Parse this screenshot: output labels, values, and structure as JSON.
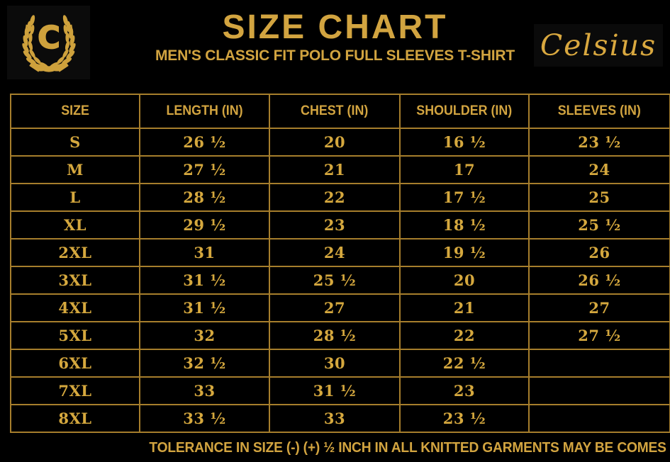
{
  "brand": {
    "logo_letter": "C",
    "name": "Celsius"
  },
  "header": {
    "title": "SIZE CHART",
    "subtitle": "MEN'S CLASSIC FIT POLO FULL SLEEVES T-SHIRT"
  },
  "chart_data": {
    "type": "table",
    "title": "SIZE CHART",
    "subtitle": "MEN'S CLASSIC FIT POLO FULL SLEEVES T-SHIRT",
    "columns": [
      "SIZE",
      "LENGTH (IN)",
      "CHEST (IN)",
      "SHOULDER (IN)",
      "SLEEVES (IN)"
    ],
    "rows": [
      [
        "S",
        "26 ½",
        "20",
        "16 ½",
        "23 ½"
      ],
      [
        "M",
        "27 ½",
        "21",
        "17",
        "24"
      ],
      [
        "L",
        "28 ½",
        "22",
        "17 ½",
        "25"
      ],
      [
        "XL",
        "29 ½",
        "23",
        "18 ½",
        "25 ½"
      ],
      [
        "2XL",
        "31",
        "24",
        "19 ½",
        "26"
      ],
      [
        "3XL",
        "31 ½",
        "25 ½",
        "20",
        "26 ½"
      ],
      [
        "4XL",
        "31 ½",
        "27",
        "21",
        "27"
      ],
      [
        "5XL",
        "32",
        "28 ½",
        "22",
        "27 ½"
      ],
      [
        "6XL",
        "32 ½",
        "30",
        "22 ½",
        ""
      ],
      [
        "7XL",
        "33",
        "31 ½",
        "23",
        ""
      ],
      [
        "8XL",
        "33 ½",
        "33",
        "23 ½",
        ""
      ]
    ]
  },
  "footer": {
    "note": "TOLERANCE IN SIZE (-) (+)  ½ INCH IN ALL KNITTED GARMENTS MAY BE COMES"
  },
  "colors": {
    "background": "#000000",
    "gold": "#d2a440",
    "table_border": "#a67e2c",
    "logo_gold": "#cea13c",
    "panel": "#0b0b0b"
  }
}
